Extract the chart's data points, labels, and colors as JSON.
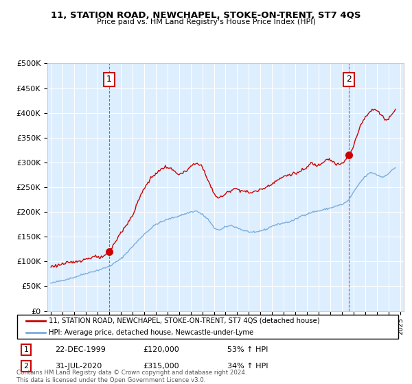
{
  "title": "11, STATION ROAD, NEWCHAPEL, STOKE-ON-TRENT, ST7 4QS",
  "subtitle": "Price paid vs. HM Land Registry's House Price Index (HPI)",
  "ytick_values": [
    0,
    50000,
    100000,
    150000,
    200000,
    250000,
    300000,
    350000,
    400000,
    450000,
    500000
  ],
  "ylim": [
    0,
    500000
  ],
  "xlim_start": 1994.7,
  "xlim_end": 2025.3,
  "sale1_x": 2000.0,
  "sale1_y": 120000,
  "sale1_label": "1",
  "sale2_x": 2020.58,
  "sale2_y": 315000,
  "sale2_label": "2",
  "red_color": "#cc0000",
  "blue_color": "#7aaddc",
  "bg_color": "#ddeeff",
  "legend_line1": "11, STATION ROAD, NEWCHAPEL, STOKE-ON-TRENT, ST7 4QS (detached house)",
  "legend_line2": "HPI: Average price, detached house, Newcastle-under-Lyme",
  "annotation1_date": "22-DEC-1999",
  "annotation1_price": "£120,000",
  "annotation1_pct": "53% ↑ HPI",
  "annotation2_date": "31-JUL-2020",
  "annotation2_price": "£315,000",
  "annotation2_pct": "34% ↑ HPI",
  "footer": "Contains HM Land Registry data © Crown copyright and database right 2024.\nThis data is licensed under the Open Government Licence v3.0."
}
